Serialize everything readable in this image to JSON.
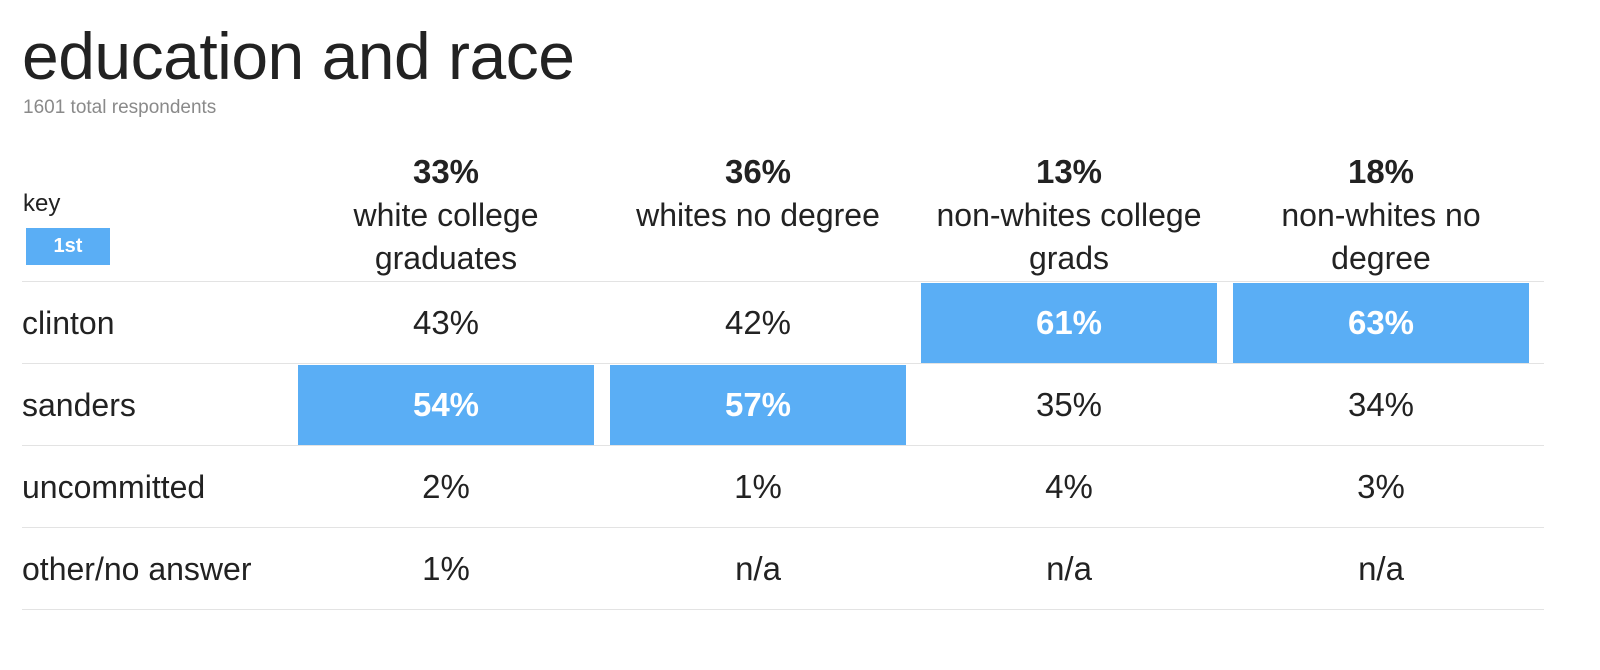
{
  "header": {
    "title": "education and race",
    "subtitle": "1601 total respondents"
  },
  "legend": {
    "key_label": "key",
    "first_label": "1st",
    "first_color": "#5aaef5"
  },
  "chart_data": {
    "type": "table",
    "title": "education and race",
    "subtitle": "1601 total respondents",
    "columns": [
      {
        "share": "33%",
        "name": "white college graduates"
      },
      {
        "share": "36%",
        "name": "whites no degree"
      },
      {
        "share": "13%",
        "name": "non-whites college grads"
      },
      {
        "share": "18%",
        "name": "non-whites no degree"
      }
    ],
    "rows": [
      {
        "label": "clinton",
        "values": [
          "43%",
          "42%",
          "61%",
          "63%"
        ],
        "first": [
          false,
          false,
          true,
          true
        ]
      },
      {
        "label": "sanders",
        "values": [
          "54%",
          "57%",
          "35%",
          "34%"
        ],
        "first": [
          true,
          true,
          false,
          false
        ]
      },
      {
        "label": "uncommitted",
        "values": [
          "2%",
          "1%",
          "4%",
          "3%"
        ],
        "first": [
          false,
          false,
          false,
          false
        ]
      },
      {
        "label": "other/no answer",
        "values": [
          "1%",
          "n/a",
          "n/a",
          "n/a"
        ],
        "first": [
          false,
          false,
          false,
          false
        ]
      }
    ]
  }
}
